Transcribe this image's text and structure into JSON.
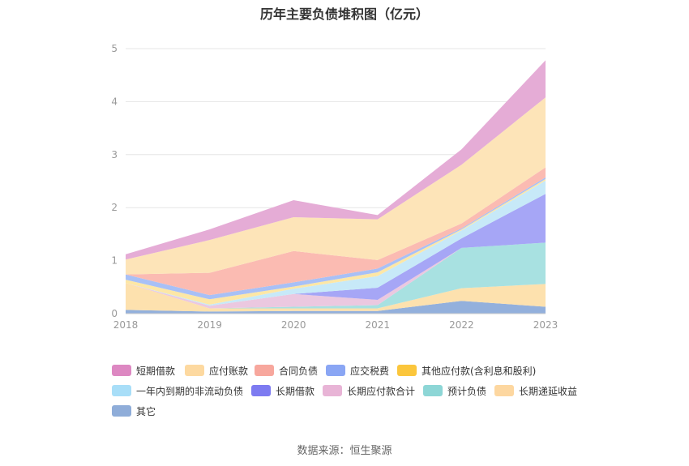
{
  "title": "历年主要负债堆积图（亿元）",
  "source": "数据来源：恒生聚源",
  "chart_data": {
    "type": "area",
    "stacked": true,
    "categories": [
      "2018",
      "2019",
      "2020",
      "2021",
      "2022",
      "2023"
    ],
    "ylim": [
      0,
      5
    ],
    "yticks": [
      0,
      1,
      2,
      3,
      4,
      5
    ],
    "grid": true,
    "legend_position": "bottom",
    "series": [
      {
        "name": "其它",
        "color": "#93b0dc",
        "values": [
          0.07,
          0.04,
          0.05,
          0.05,
          0.24,
          0.13
        ]
      },
      {
        "name": "长期递延收益",
        "color": "#fde1ae",
        "values": [
          0.51,
          0.06,
          0.05,
          0.05,
          0.24,
          0.43
        ]
      },
      {
        "name": "预计负债",
        "color": "#a8e1e1",
        "values": [
          0.0,
          0.0,
          0.03,
          0.06,
          0.76,
          0.78
        ]
      },
      {
        "name": "长期应付款合计",
        "color": "#ebc8e0",
        "values": [
          0.0,
          0.05,
          0.24,
          0.1,
          0.0,
          0.0
        ]
      },
      {
        "name": "长期借款",
        "color": "#a6a6f6",
        "values": [
          0.0,
          0.0,
          0.0,
          0.23,
          0.18,
          0.92
        ]
      },
      {
        "name": "一年内到期的非流动负债",
        "color": "#c7e9f8",
        "values": [
          0.0,
          0.02,
          0.1,
          0.22,
          0.15,
          0.25
        ]
      },
      {
        "name": "其他应付款(含利息和股利)",
        "color": "#fde7a6",
        "values": [
          0.06,
          0.1,
          0.04,
          0.07,
          0.02,
          0.03
        ]
      },
      {
        "name": "应交税费",
        "color": "#a8c0f6",
        "values": [
          0.1,
          0.08,
          0.08,
          0.07,
          0.02,
          0.03
        ]
      },
      {
        "name": "合同负债",
        "color": "#fbbbb2",
        "values": [
          0.0,
          0.42,
          0.59,
          0.16,
          0.09,
          0.19
        ]
      },
      {
        "name": "应付账款",
        "color": "#fde4b8",
        "values": [
          0.28,
          0.62,
          0.64,
          0.77,
          1.11,
          1.32
        ]
      },
      {
        "name": "短期借款",
        "color": "#e5acd6",
        "values": [
          0.1,
          0.2,
          0.32,
          0.08,
          0.29,
          0.7
        ]
      }
    ]
  },
  "legend": [
    {
      "label": "短期借款",
      "color": "#dd88c2"
    },
    {
      "label": "应付账款",
      "color": "#fdd9a0"
    },
    {
      "label": "合同负债",
      "color": "#f7a79d"
    },
    {
      "label": "应交税费",
      "color": "#8aa6f4"
    },
    {
      "label": "其他应付款(含利息和股利)",
      "color": "#fbc63c"
    },
    {
      "label": "一年内到期的非流动负债",
      "color": "#a8def8"
    },
    {
      "label": "长期借款",
      "color": "#7d7bf1"
    },
    {
      "label": "长期应付款合计",
      "color": "#e8b4d6"
    },
    {
      "label": "预计负债",
      "color": "#8dd6d6"
    },
    {
      "label": "长期递延收益",
      "color": "#fdd7a0"
    },
    {
      "label": "其它",
      "color": "#8fadd9"
    }
  ]
}
